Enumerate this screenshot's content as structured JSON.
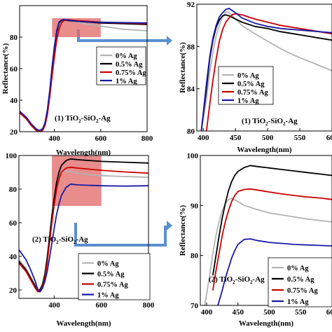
{
  "colors": {
    "s0": "#b3b3b3",
    "s05": "#000000",
    "s075": "#cc0000",
    "s1": "#1a1aa6",
    "zoom_fill": "#e06666",
    "arrow": "#5b8fd0"
  },
  "chart_data": [
    {
      "id": "a",
      "type": "line",
      "xlabel": "Wavelength(nm)",
      "ylabel": "Reflectance(%)",
      "xlim": [
        250,
        800
      ],
      "ylim": [
        20,
        100
      ],
      "xticks": [
        400,
        600,
        800
      ],
      "yticks": [
        20,
        40,
        60,
        80
      ],
      "annotation_prefix": "(1) TiO",
      "annotation_mid": "-SiO",
      "annotation_suffix": "-Ag",
      "zoom_box": {
        "x": [
          390,
          600
        ],
        "y": [
          80,
          92
        ]
      },
      "legend": [
        "0% Ag",
        "0.5% Ag",
        "0.75% Ag",
        "1% Ag"
      ],
      "series": [
        {
          "name": "0% Ag",
          "color_key": "s0",
          "x": [
            250,
            280,
            300,
            320,
            330,
            340,
            350,
            360,
            370,
            380,
            390,
            400,
            410,
            420,
            430,
            440,
            460,
            500,
            550,
            600,
            700,
            800
          ],
          "y": [
            33,
            29,
            25,
            22,
            21,
            21,
            22,
            26,
            34,
            46,
            60,
            72,
            82,
            88,
            90.5,
            91,
            90.5,
            89.5,
            88,
            87,
            85,
            84
          ]
        },
        {
          "name": "0.5% Ag",
          "color_key": "s05",
          "x": [
            250,
            280,
            300,
            320,
            330,
            340,
            350,
            360,
            370,
            380,
            390,
            400,
            410,
            420,
            430,
            440,
            460,
            500,
            550,
            600,
            700,
            800
          ],
          "y": [
            32,
            28,
            24,
            21,
            20,
            20,
            21,
            25,
            33,
            45,
            60,
            73,
            83,
            89,
            90.5,
            91,
            90.5,
            90,
            89.5,
            89,
            88.5,
            88
          ]
        },
        {
          "name": "0.75% Ag",
          "color_key": "s075",
          "x": [
            250,
            280,
            300,
            320,
            330,
            340,
            350,
            360,
            370,
            380,
            390,
            400,
            410,
            420,
            430,
            440,
            460,
            500,
            550,
            600,
            700,
            800
          ],
          "y": [
            32,
            28,
            24,
            21,
            20,
            20,
            21,
            24,
            31,
            42,
            55,
            67,
            78,
            85,
            89,
            90.5,
            91,
            90.5,
            90,
            89.5,
            89,
            88.5
          ]
        },
        {
          "name": "1% Ag",
          "color_key": "s1",
          "x": [
            250,
            280,
            300,
            320,
            330,
            340,
            350,
            360,
            370,
            380,
            390,
            400,
            410,
            420,
            430,
            440,
            460,
            500,
            550,
            600,
            700,
            800
          ],
          "y": [
            33,
            29,
            25,
            22,
            21,
            21,
            22,
            26,
            34,
            46,
            61,
            74,
            84,
            89.5,
            90.8,
            91.2,
            90.8,
            90,
            89.6,
            89.4,
            89.2,
            89
          ]
        }
      ]
    },
    {
      "id": "b",
      "type": "line",
      "xlabel": "Wavelength(nm)",
      "ylabel": "Reflectance(%)",
      "xlim": [
        390,
        600
      ],
      "ylim": [
        80,
        92
      ],
      "xticks": [
        400,
        450,
        500,
        550,
        600
      ],
      "yticks": [
        80,
        84,
        88,
        92
      ],
      "annotation_prefix": "(1) TiO",
      "annotation_mid": "-SiO",
      "annotation_suffix": "-Ag",
      "legend": [
        "0% Ag",
        "0.5% Ag",
        "0.75% Ag",
        "1% Ag"
      ],
      "series": [
        {
          "name": "0% Ag",
          "color_key": "s0",
          "x": [
            397,
            405,
            410,
            415,
            420,
            425,
            430,
            435,
            440,
            450,
            460,
            480,
            500,
            520,
            540,
            560,
            580,
            600
          ],
          "y": [
            80,
            83,
            85.5,
            87.5,
            89,
            90,
            90.8,
            91.3,
            91.2,
            90.6,
            90,
            89.2,
            88.5,
            87.8,
            87.2,
            86.7,
            86.2,
            85.7
          ]
        },
        {
          "name": "0.5% Ag",
          "color_key": "s05",
          "x": [
            397,
            405,
            410,
            415,
            420,
            425,
            430,
            435,
            440,
            450,
            460,
            480,
            500,
            520,
            540,
            560,
            580,
            600
          ],
          "y": [
            80,
            84,
            86.8,
            88.6,
            89.8,
            90.5,
            90.9,
            91,
            90.9,
            90.6,
            90.3,
            89.9,
            89.7,
            89.4,
            89.2,
            89,
            88.8,
            88.6
          ]
        },
        {
          "name": "0.75% Ag",
          "color_key": "s075",
          "x": [
            405,
            410,
            415,
            420,
            425,
            430,
            435,
            440,
            445,
            450,
            460,
            480,
            500,
            520,
            540,
            560,
            580,
            600
          ],
          "y": [
            80,
            82.5,
            84.8,
            86.8,
            88.5,
            89.6,
            90.3,
            90.7,
            91,
            91.1,
            91,
            90.6,
            90.3,
            90,
            89.8,
            89.6,
            89.4,
            89.2
          ]
        },
        {
          "name": "1% Ag",
          "color_key": "s1",
          "x": [
            397,
            405,
            410,
            415,
            420,
            425,
            430,
            435,
            440,
            450,
            460,
            480,
            500,
            520,
            540,
            560,
            580,
            600
          ],
          "y": [
            80,
            84.5,
            87,
            88.8,
            90,
            90.8,
            91.2,
            91.5,
            91.6,
            91.2,
            90.7,
            90.2,
            89.9,
            89.7,
            89.6,
            89.5,
            89.4,
            89.3
          ]
        }
      ]
    },
    {
      "id": "c",
      "type": "line",
      "xlabel": "Wavelength(nm)",
      "ylabel": "",
      "xlim": [
        250,
        800
      ],
      "ylim": [
        15,
        100
      ],
      "xticks": [
        400,
        600,
        800
      ],
      "yticks": [
        20,
        40,
        60,
        80,
        100
      ],
      "annotation_prefix": "(2) TiO",
      "annotation_mid": "-SiO",
      "annotation_suffix": "-Ag",
      "zoom_box": {
        "x": [
          390,
          600
        ],
        "y": [
          70,
          100
        ]
      },
      "legend": [
        "0% Ag",
        "0.5% Ag",
        "0.75% Ag",
        "1% Ag"
      ],
      "series": [
        {
          "name": "0% Ag",
          "color_key": "s0",
          "x": [
            250,
            280,
            300,
            320,
            330,
            340,
            350,
            360,
            370,
            380,
            390,
            400,
            410,
            420,
            430,
            450,
            500,
            550,
            600,
            700,
            800
          ],
          "y": [
            38,
            33,
            28,
            23,
            21,
            21,
            24,
            30,
            40,
            52,
            65,
            76,
            84,
            89,
            90.5,
            91,
            89.5,
            88.5,
            88,
            87.5,
            87
          ]
        },
        {
          "name": "0.5% Ag",
          "color_key": "s05",
          "x": [
            250,
            280,
            300,
            320,
            330,
            340,
            350,
            360,
            370,
            380,
            390,
            400,
            410,
            420,
            430,
            450,
            470,
            500,
            600,
            700,
            800
          ],
          "y": [
            37,
            32,
            27,
            22,
            20,
            20,
            23,
            29,
            39,
            51,
            64,
            75,
            84,
            90,
            94,
            97,
            98,
            97.5,
            96.5,
            96,
            95.5
          ]
        },
        {
          "name": "0.75% Ag",
          "color_key": "s075",
          "x": [
            250,
            280,
            300,
            320,
            330,
            340,
            350,
            360,
            370,
            380,
            390,
            400,
            410,
            420,
            430,
            450,
            470,
            500,
            600,
            700,
            800
          ],
          "y": [
            36,
            31,
            26,
            21,
            19,
            19,
            22,
            27,
            36,
            48,
            60,
            71,
            80,
            86,
            90,
            92.5,
            93,
            92.5,
            91.2,
            90.2,
            89.5
          ]
        },
        {
          "name": "1% Ag",
          "color_key": "s1",
          "x": [
            250,
            280,
            300,
            320,
            330,
            340,
            350,
            360,
            370,
            380,
            390,
            400,
            410,
            420,
            430,
            450,
            470,
            500,
            600,
            700,
            800
          ],
          "y": [
            44,
            38,
            32,
            25,
            20,
            19,
            21,
            25,
            31,
            39,
            48,
            57,
            65,
            71,
            76,
            81,
            83,
            82.5,
            82,
            81.8,
            82
          ]
        }
      ]
    },
    {
      "id": "d",
      "type": "line",
      "xlabel": "Wavelength(nm)",
      "ylabel": "Reflectance(%)",
      "xlim": [
        390,
        600
      ],
      "ylim": [
        70,
        100
      ],
      "xticks": [
        400,
        450,
        500,
        550,
        600
      ],
      "yticks": [
        70,
        80,
        90,
        100
      ],
      "annotation_prefix": "(2) TiO",
      "annotation_mid": "-SiO",
      "annotation_suffix": "-Ag",
      "legend": [
        "0% Ag",
        "0.5% Ag",
        "0.75% Ag",
        "1% Ag"
      ],
      "series": [
        {
          "name": "0% Ag",
          "color_key": "s0",
          "x": [
            397,
            405,
            410,
            415,
            420,
            425,
            430,
            435,
            440,
            450,
            460,
            480,
            500,
            520,
            540,
            560,
            580,
            600
          ],
          "y": [
            70,
            76,
            80.5,
            84,
            86.8,
            89,
            90.4,
            91.2,
            91.4,
            90.8,
            90,
            89.2,
            88.5,
            88.1,
            87.7,
            87.3,
            87,
            86.7
          ]
        },
        {
          "name": "0.5% Ag",
          "color_key": "s05",
          "x": [
            410,
            415,
            420,
            425,
            430,
            435,
            440,
            445,
            450,
            460,
            470,
            480,
            500,
            520,
            540,
            560,
            580,
            600
          ],
          "y": [
            76,
            80,
            84,
            87.5,
            90.5,
            93,
            94.8,
            96,
            96.8,
            97.6,
            98,
            97.8,
            97.5,
            97.2,
            96.9,
            96.6,
            96.3,
            96
          ]
        },
        {
          "name": "0.75% Ag",
          "color_key": "s075",
          "x": [
            410,
            415,
            420,
            425,
            430,
            435,
            440,
            445,
            450,
            460,
            470,
            480,
            500,
            520,
            540,
            560,
            580,
            600
          ],
          "y": [
            73,
            77,
            80.5,
            84,
            86.8,
            89,
            90.8,
            92,
            92.8,
            93.2,
            93.3,
            93.1,
            92.7,
            92.3,
            92,
            91.7,
            91.5,
            91.2
          ]
        },
        {
          "name": "1% Ag",
          "color_key": "s1",
          "x": [
            418,
            425,
            430,
            435,
            440,
            445,
            450,
            460,
            470,
            480,
            500,
            520,
            540,
            560,
            580,
            600
          ],
          "y": [
            70,
            73,
            75.5,
            77.5,
            79.5,
            81,
            82.2,
            83.2,
            83.3,
            83,
            82.6,
            82.4,
            82.2,
            82.1,
            82,
            81.9
          ]
        }
      ]
    }
  ]
}
